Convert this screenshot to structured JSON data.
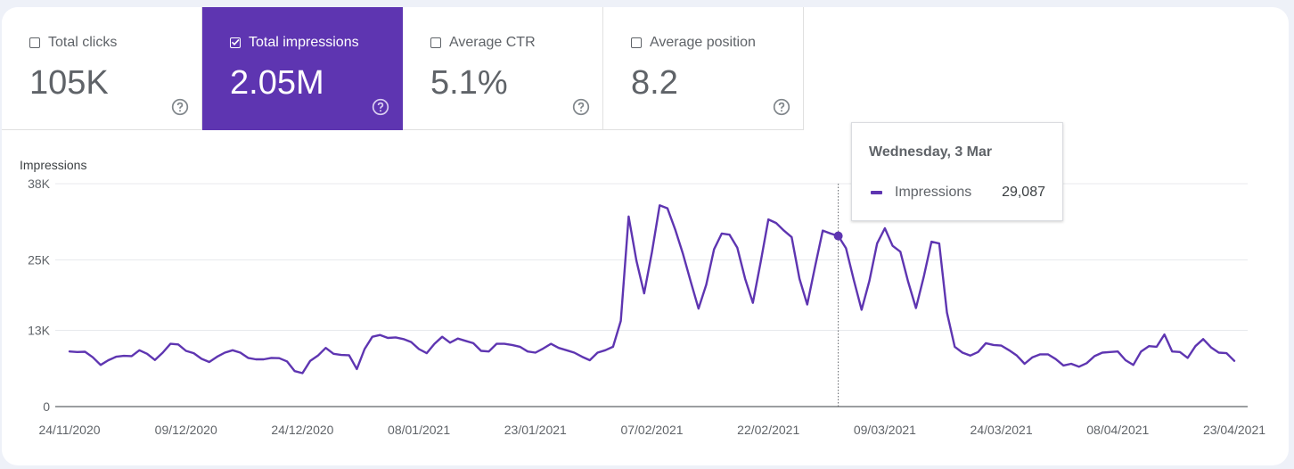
{
  "cards": [
    {
      "label": "Total clicks",
      "value": "105K",
      "checked": false,
      "selected": false
    },
    {
      "label": "Total impressions",
      "value": "2.05M",
      "checked": true,
      "selected": true
    },
    {
      "label": "Average CTR",
      "value": "5.1%",
      "checked": false,
      "selected": false
    },
    {
      "label": "Average position",
      "value": "8.2",
      "checked": false,
      "selected": false
    }
  ],
  "tooltip": {
    "date": "Wednesday, 3 Mar",
    "series": "Impressions",
    "value": "29,087"
  },
  "colors": {
    "accent": "#5e35b1",
    "line": "#5e35b1",
    "grid": "#e8eaed"
  },
  "icons": {
    "help": "help-circle-icon",
    "checkbox": "checkbox-icon"
  },
  "chart_data": {
    "type": "line",
    "title": "",
    "ylabel": "Impressions",
    "xlabel": "",
    "ylim": [
      0,
      38000
    ],
    "yticks": [
      0,
      13000,
      25000,
      38000
    ],
    "ytick_labels": [
      "0",
      "13K",
      "25K",
      "38K"
    ],
    "xlim": [
      "2020-11-24",
      "2021-04-23"
    ],
    "xtick_labels": [
      "24/11/2020",
      "09/12/2020",
      "24/12/2020",
      "08/01/2021",
      "23/01/2021",
      "07/02/2021",
      "22/02/2021",
      "09/03/2021",
      "24/03/2021",
      "08/04/2021",
      "23/04/2021"
    ],
    "grid": true,
    "highlight": {
      "date": "2021-03-03",
      "value": 29087
    },
    "series": [
      {
        "name": "Impressions",
        "start_date": "2020-11-24",
        "values": [
          9400,
          9300,
          9350,
          8400,
          7100,
          7900,
          8500,
          8650,
          8600,
          9600,
          9000,
          7950,
          9200,
          10700,
          10600,
          9500,
          9100,
          8150,
          7600,
          8500,
          9200,
          9600,
          9200,
          8300,
          8050,
          8050,
          8300,
          8250,
          7700,
          6050,
          5700,
          7800,
          8700,
          10000,
          9000,
          8800,
          8750,
          6400,
          9800,
          11900,
          12200,
          11700,
          11800,
          11500,
          11000,
          9800,
          9100,
          10700,
          11900,
          10900,
          11600,
          11200,
          10800,
          9500,
          9400,
          10700,
          10700,
          10500,
          10200,
          9400,
          9200,
          9900,
          10700,
          10000,
          9600,
          9200,
          8500,
          7900,
          9200,
          9600,
          10200,
          14600,
          32400,
          24900,
          19300,
          26300,
          34300,
          33800,
          30200,
          26000,
          21300,
          16700,
          20800,
          26800,
          29500,
          29300,
          27100,
          21800,
          17700,
          24600,
          31900,
          31300,
          30000,
          28900,
          21800,
          17400,
          23800,
          30000,
          29500,
          29087,
          27000,
          21600,
          16500,
          21400,
          27800,
          30400,
          27400,
          26400,
          21300,
          16800,
          22100,
          28100,
          27800,
          16000,
          10200,
          9200,
          8700,
          9300,
          10800,
          10500,
          10400,
          9600,
          8700,
          7300,
          8400,
          8900,
          8900,
          8100,
          7000,
          7300,
          6800,
          7400,
          8600,
          9200,
          9300,
          9400,
          7900,
          7100,
          9400,
          10300,
          10200,
          12300,
          9400,
          9300,
          8300,
          10300,
          11500,
          10100,
          9200,
          9100,
          7800
        ]
      }
    ]
  }
}
